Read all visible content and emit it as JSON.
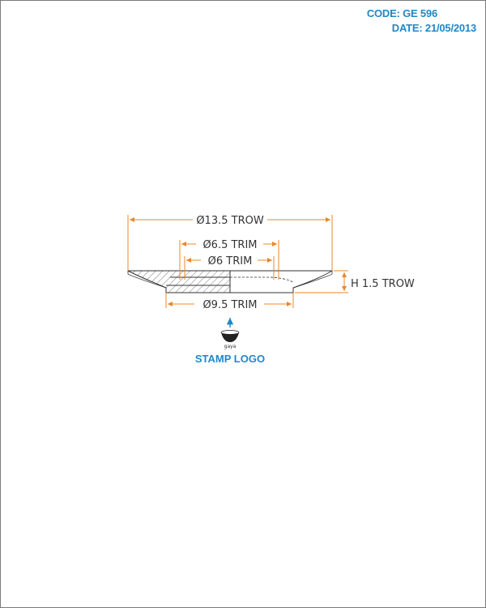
{
  "header": {
    "code": "CODE: GE 596",
    "date": "DATE: 21/05/2013"
  },
  "dimensions": {
    "outer_diameter": "Ø13.5 TROW",
    "trim_outer": "Ø6.5 TRIM",
    "trim_inner": "Ø6 TRIM",
    "base_diameter": "Ø9.5 TRIM",
    "height": "H 1.5 TROW"
  },
  "stamp": {
    "logo_text": "gaya",
    "label": "STAMP LOGO"
  },
  "colors": {
    "accent": "#1e88c7",
    "dimension": "#e8872a",
    "outline": "#333333"
  }
}
